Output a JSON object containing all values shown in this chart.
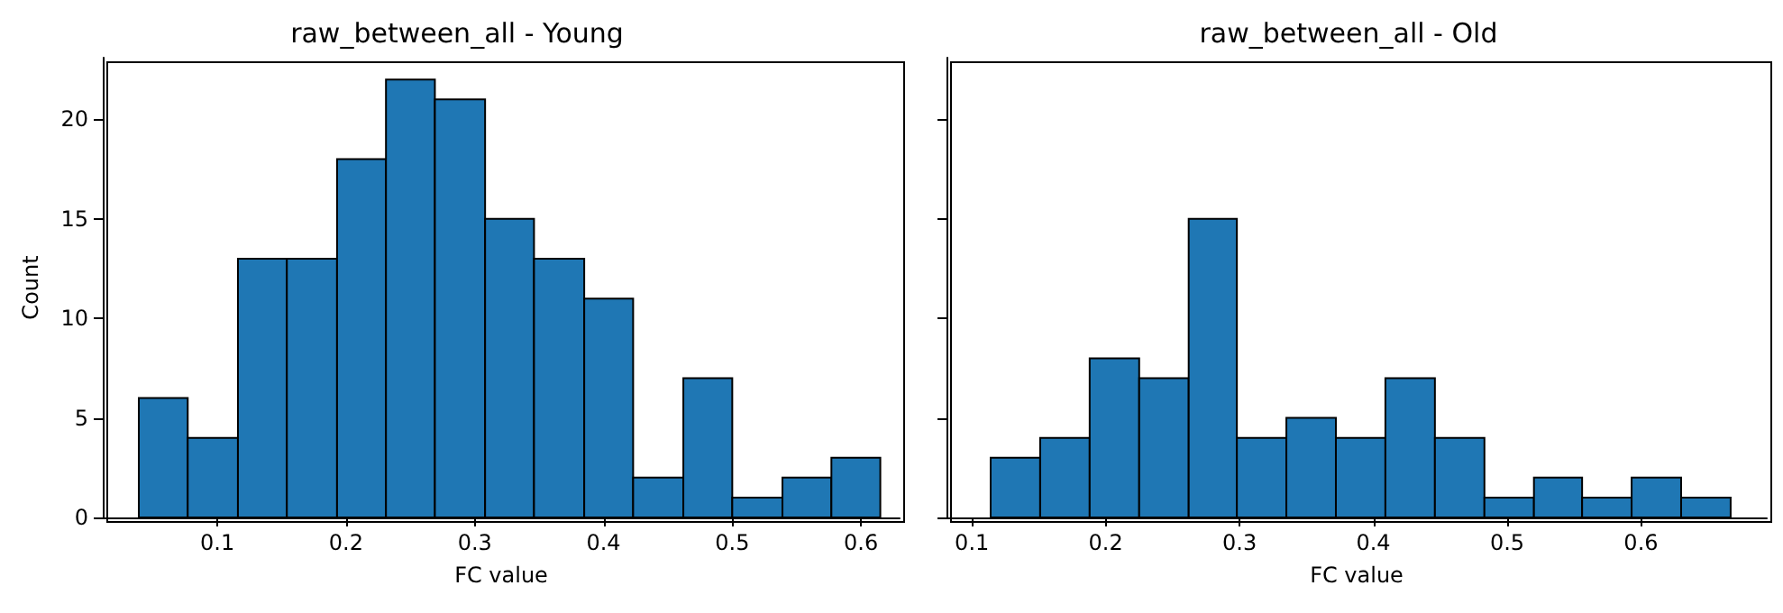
{
  "chart_data": [
    {
      "type": "histogram",
      "title": "raw_between_all - Young",
      "xlabel": "FC value",
      "ylabel": "Count",
      "bins": [
        0.039,
        0.077,
        0.116,
        0.154,
        0.193,
        0.231,
        0.269,
        0.308,
        0.346,
        0.385,
        0.423,
        0.462,
        0.5,
        0.539,
        0.577,
        0.615
      ],
      "values": [
        6,
        4,
        13,
        13,
        18,
        22,
        21,
        15,
        13,
        11,
        2,
        7,
        1,
        2,
        3
      ],
      "color": "#1f77b4",
      "xlim": [
        0.011,
        0.63
      ],
      "xticks": [
        0.1,
        0.2,
        0.3,
        0.4,
        0.5,
        0.6
      ],
      "ylim": [
        0,
        23.1
      ],
      "yticks": [
        0,
        5,
        10,
        15,
        20
      ],
      "grid": false
    },
    {
      "type": "histogram",
      "title": "raw_between_all - Old",
      "xlabel": "FC value",
      "bins": [
        0.114,
        0.151,
        0.188,
        0.225,
        0.262,
        0.298,
        0.335,
        0.372,
        0.409,
        0.446,
        0.483,
        0.52,
        0.556,
        0.593,
        0.63,
        0.667
      ],
      "values": [
        3,
        4,
        8,
        7,
        15,
        4,
        5,
        4,
        7,
        4,
        1,
        2,
        1,
        2,
        1
      ],
      "color": "#1f77b4",
      "xlim": [
        0.081,
        0.694
      ],
      "xticks": [
        0.1,
        0.2,
        0.3,
        0.4,
        0.5,
        0.6
      ],
      "ylim": [
        0,
        23.1
      ],
      "yticks": [
        0,
        5,
        10,
        15,
        20
      ],
      "grid": false,
      "tick_labels": "x"
    }
  ]
}
